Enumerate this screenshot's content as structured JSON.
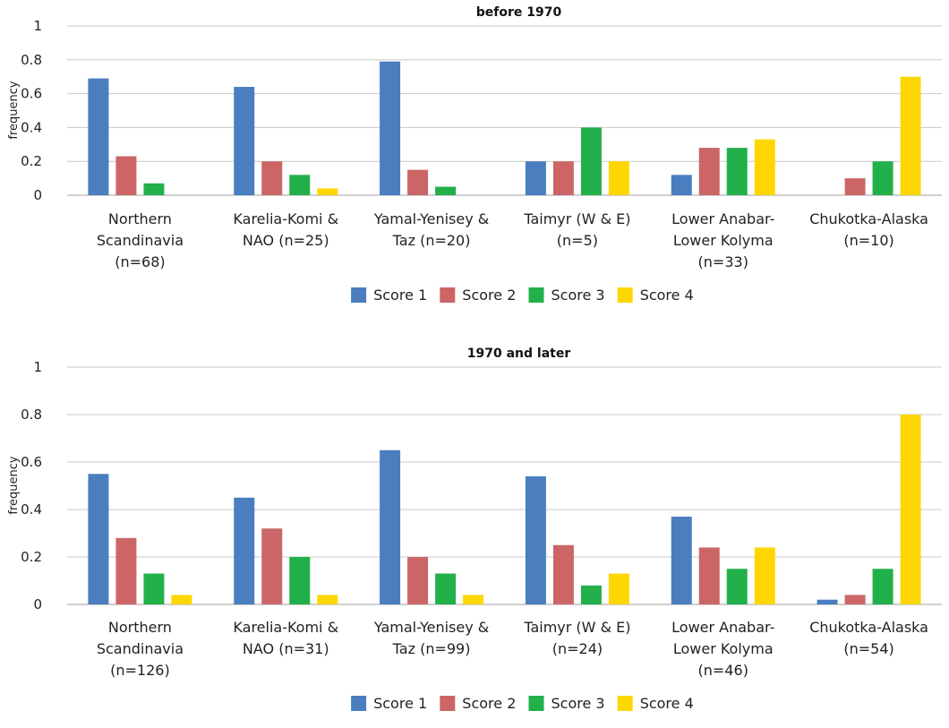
{
  "chart_data": [
    {
      "type": "bar",
      "title": "before 1970",
      "xlabel": "",
      "ylabel": "frequency",
      "ylim": [
        0,
        1
      ],
      "yticks": [
        "0",
        "0.2",
        "0.4",
        "0.6",
        "0.8",
        "1"
      ],
      "categories": [
        [
          "Northern",
          "Scandinavia",
          "(n=68)"
        ],
        [
          "Karelia-Komi &",
          "NAO (n=25)"
        ],
        [
          "Yamal-Yenisey &",
          "Taz (n=20)"
        ],
        [
          "Taimyr (W & E)",
          "(n=5)"
        ],
        [
          "Lower Anabar-",
          "Lower Kolyma",
          "(n=33)"
        ],
        [
          "Chukotka-Alaska",
          "(n=10)"
        ]
      ],
      "series": [
        {
          "name": "Score 1",
          "color": "#4a7ebf",
          "values": [
            0.69,
            0.64,
            0.79,
            0.2,
            0.12,
            0
          ]
        },
        {
          "name": "Score 2",
          "color": "#cc6666",
          "values": [
            0.23,
            0.2,
            0.15,
            0.2,
            0.28,
            0.1
          ]
        },
        {
          "name": "Score 3",
          "color": "#22b04b",
          "values": [
            0.07,
            0.12,
            0.05,
            0.4,
            0.28,
            0.2
          ]
        },
        {
          "name": "Score 4",
          "color": "#ffd700",
          "values": [
            0,
            0.04,
            0,
            0.2,
            0.33,
            0.7
          ]
        }
      ],
      "grid": true,
      "legend": "bottom"
    },
    {
      "type": "bar",
      "title": "1970 and later",
      "xlabel": "",
      "ylabel": "frequency",
      "ylim": [
        0,
        1
      ],
      "yticks": [
        "0",
        "0.2",
        "0.4",
        "0.6",
        "0.8",
        "1"
      ],
      "categories": [
        [
          "Northern",
          "Scandinavia",
          "(n=126)"
        ],
        [
          "Karelia-Komi &",
          "NAO (n=31)"
        ],
        [
          "Yamal-Yenisey &",
          "Taz (n=99)"
        ],
        [
          "Taimyr (W & E)",
          "(n=24)"
        ],
        [
          "Lower Anabar-",
          "Lower Kolyma",
          "(n=46)"
        ],
        [
          "Chukotka-Alaska",
          "(n=54)"
        ]
      ],
      "series": [
        {
          "name": "Score 1",
          "color": "#4a7ebf",
          "values": [
            0.55,
            0.45,
            0.65,
            0.54,
            0.37,
            0.02
          ]
        },
        {
          "name": "Score 2",
          "color": "#cc6666",
          "values": [
            0.28,
            0.32,
            0.2,
            0.25,
            0.24,
            0.04
          ]
        },
        {
          "name": "Score 3",
          "color": "#22b04b",
          "values": [
            0.13,
            0.2,
            0.13,
            0.08,
            0.15,
            0.15
          ]
        },
        {
          "name": "Score 4",
          "color": "#ffd700",
          "values": [
            0.04,
            0.04,
            0.04,
            0.13,
            0.24,
            0.8
          ]
        }
      ],
      "grid": true,
      "legend": "bottom"
    }
  ]
}
